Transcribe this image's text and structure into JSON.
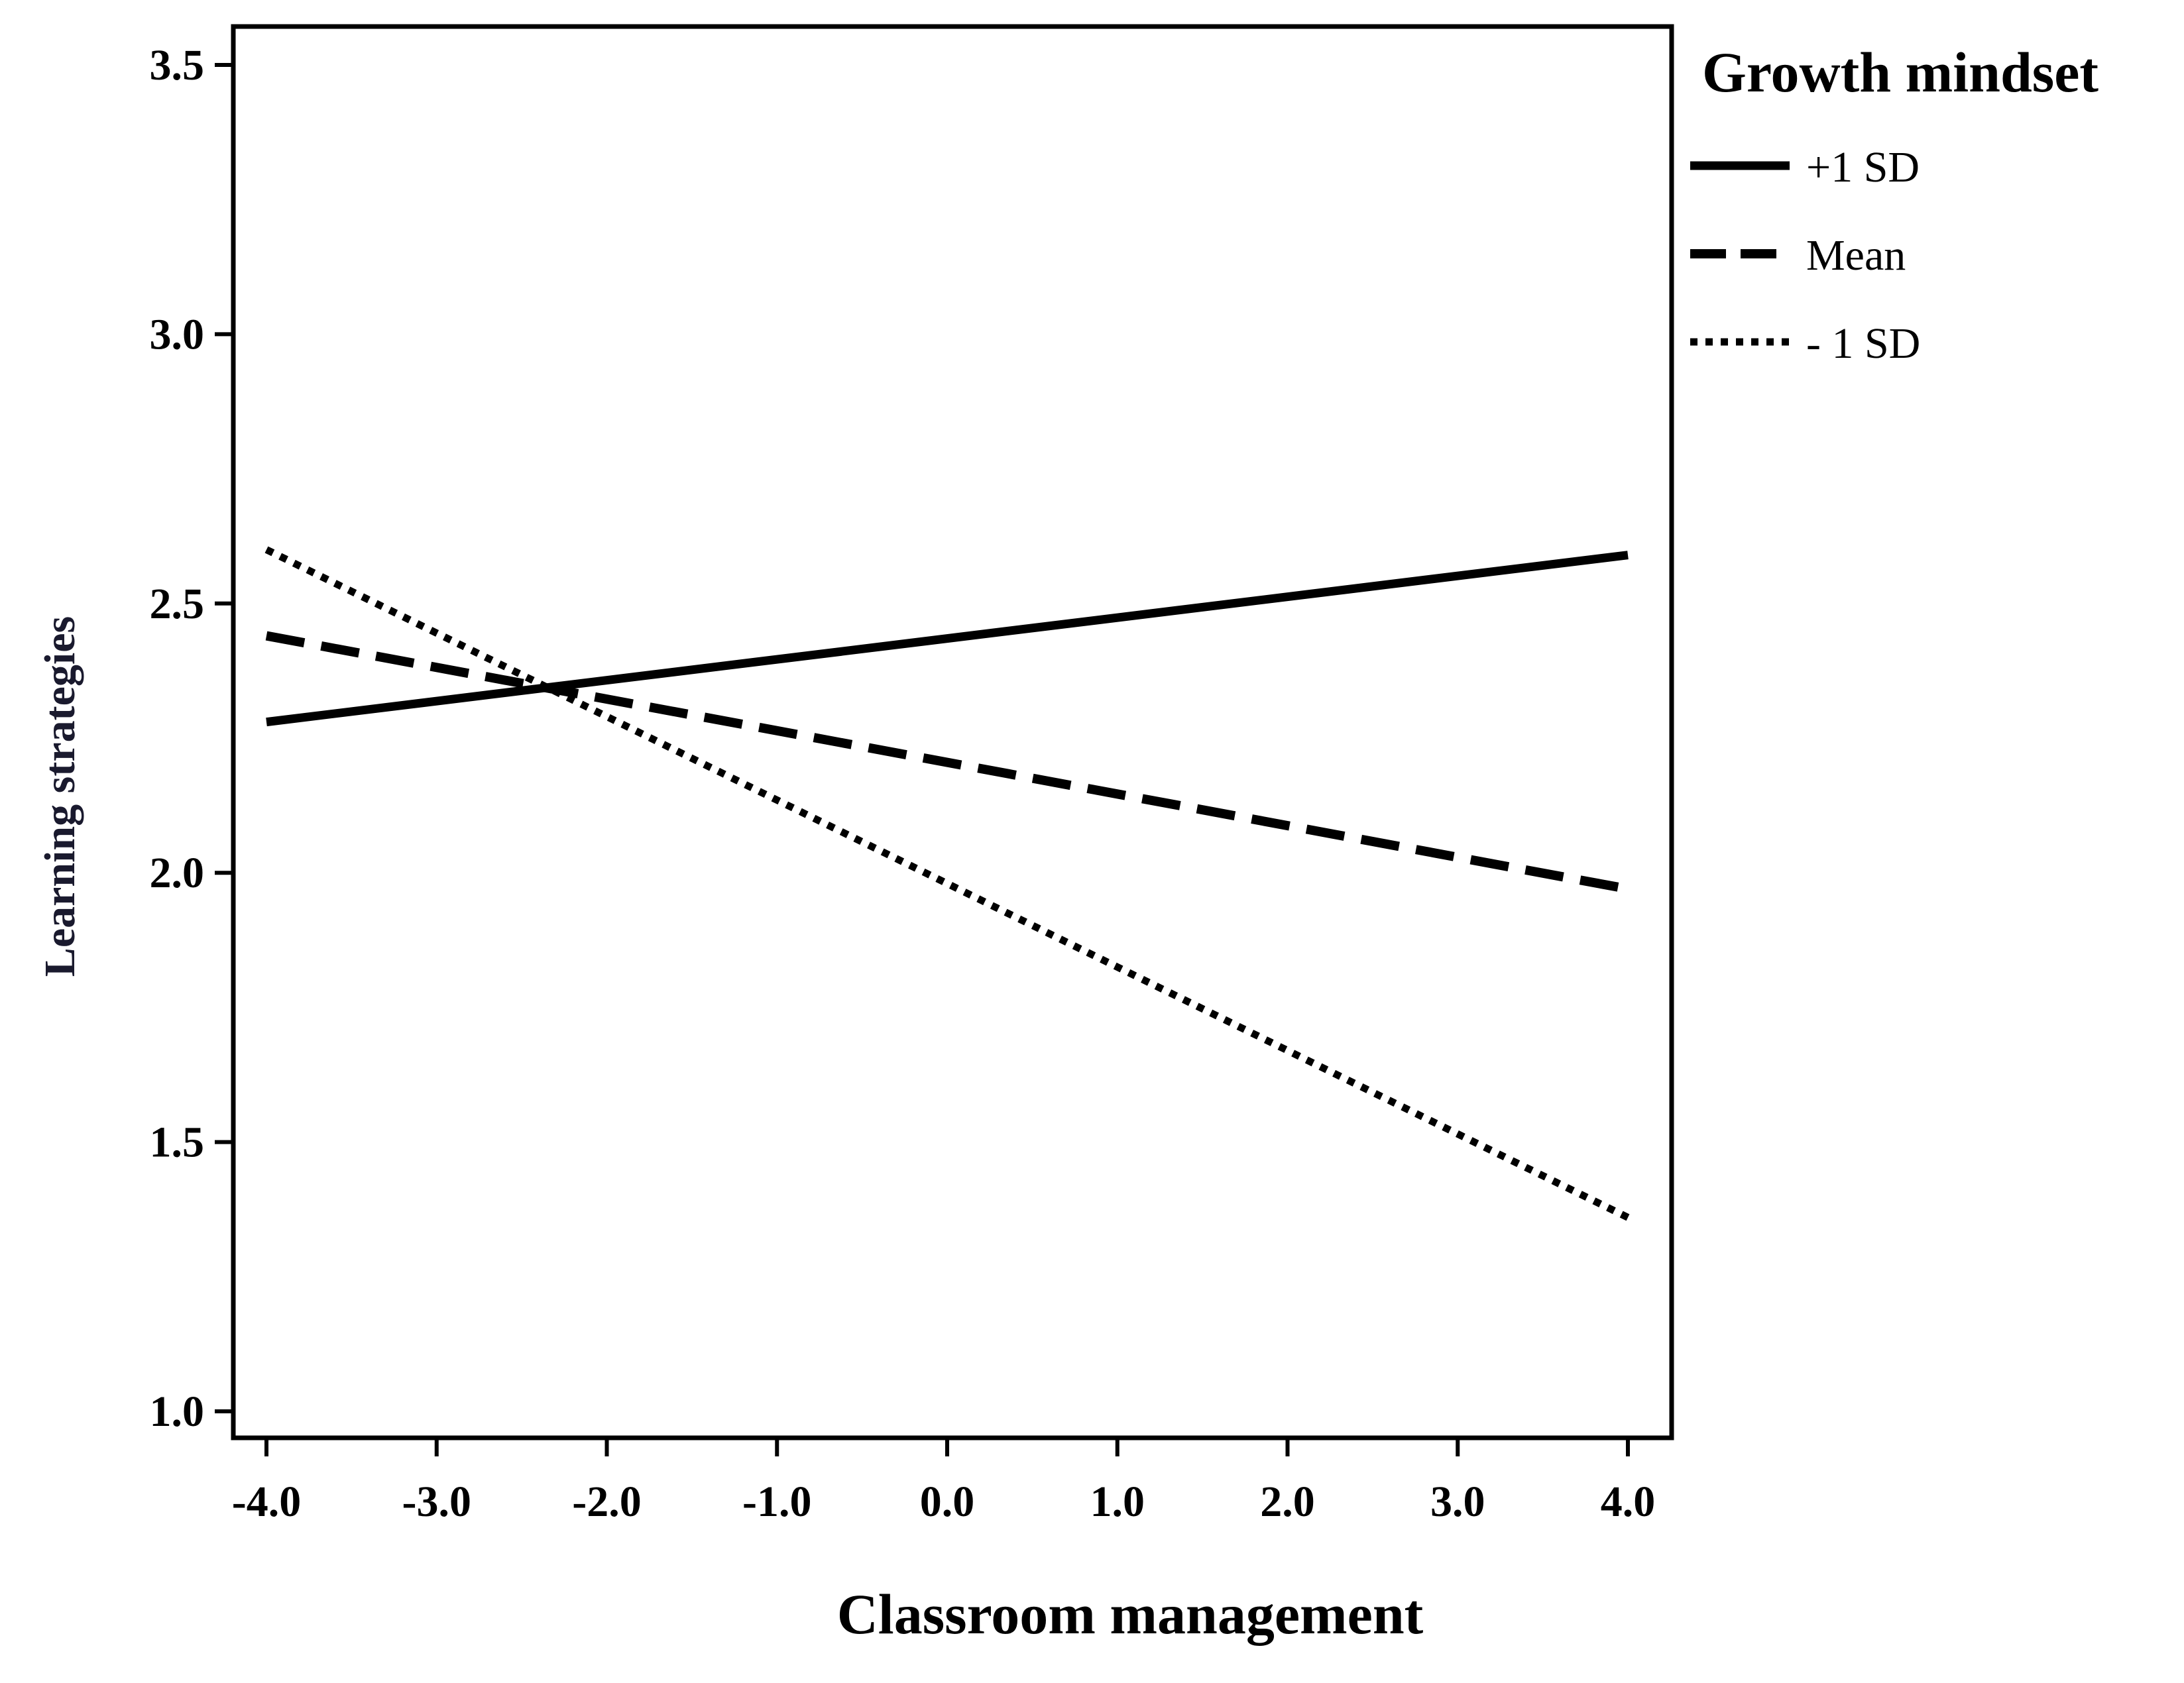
{
  "chart_data": {
    "type": "line",
    "title": "",
    "xlabel": "Classroom management",
    "ylabel": "Learning strategies",
    "xlim": [
      -4.0,
      4.0
    ],
    "ylim": [
      1.0,
      3.5
    ],
    "x_ticks": [
      "-4.0",
      "-3.0",
      "-2.0",
      "-1.0",
      "0.0",
      "1.0",
      "2.0",
      "3.0",
      "4.0"
    ],
    "y_ticks": [
      "1.0",
      "1.5",
      "2.0",
      "2.5",
      "3.0",
      "3.5"
    ],
    "grid": false,
    "legend": {
      "title": "Growth mindset",
      "placement": "outside-top-right"
    },
    "series": [
      {
        "name": "+1 SD",
        "style": "solid",
        "x": [
          -4.0,
          4.0
        ],
        "values": [
          2.28,
          2.59
        ]
      },
      {
        "name": "Mean",
        "style": "dashed",
        "x": [
          -4.0,
          4.0
        ],
        "values": [
          2.44,
          1.97
        ]
      },
      {
        "name": "- 1 SD",
        "style": "dotted",
        "x": [
          -4.0,
          4.0
        ],
        "values": [
          2.6,
          1.36
        ]
      }
    ]
  },
  "colors": {
    "line": "#000000",
    "ylabel": "#1a1a2e"
  }
}
